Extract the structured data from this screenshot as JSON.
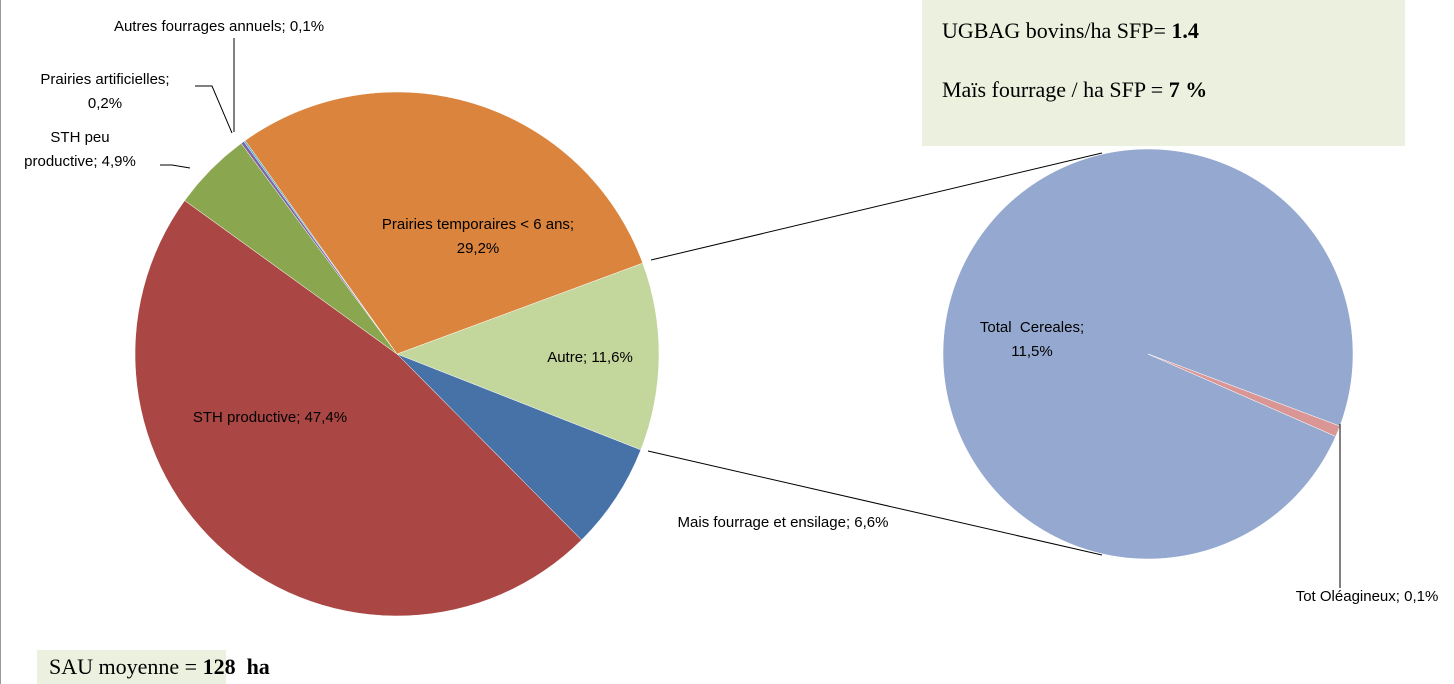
{
  "chart_data": {
    "type": "pie-of-pie",
    "values": [
      11.6,
      6.6,
      47.4,
      4.9,
      0.2,
      0.1,
      29.2
    ],
    "value_labels": [
      "Autre; 11,6%",
      "Mais fourrage et ensilage; 6,6%",
      "STH productive; 47,4%",
      "STH peu\nproductive; 4,9%",
      "Prairies artificielles;\n0,2%",
      "Autres fourrages annuels; 0,1%",
      "Prairies temporaires < 6 ans;\n29,2%"
    ],
    "colors": [
      "#c3d69b",
      "#4672a8",
      "#aa4644",
      "#8aa64e",
      "#7f64a3",
      "#4bacc6",
      "#db843d"
    ],
    "secondary": {
      "values": [
        11.5,
        0.1
      ],
      "value_labels": [
        "Total  Cereales;\n11,5%",
        "Tot Oléagineux; 0,1%"
      ],
      "colors": [
        "#95a9d0",
        "#d99694"
      ]
    },
    "text_boxes": [
      {
        "text": "UGBAG bovins/ha SFP= ",
        "value": "1.4"
      },
      {
        "text": "Maïs fourrage / ha SFP = ",
        "value": "7 %"
      },
      {
        "text": "SAU moyenne = ",
        "value": "128  ha"
      }
    ]
  }
}
